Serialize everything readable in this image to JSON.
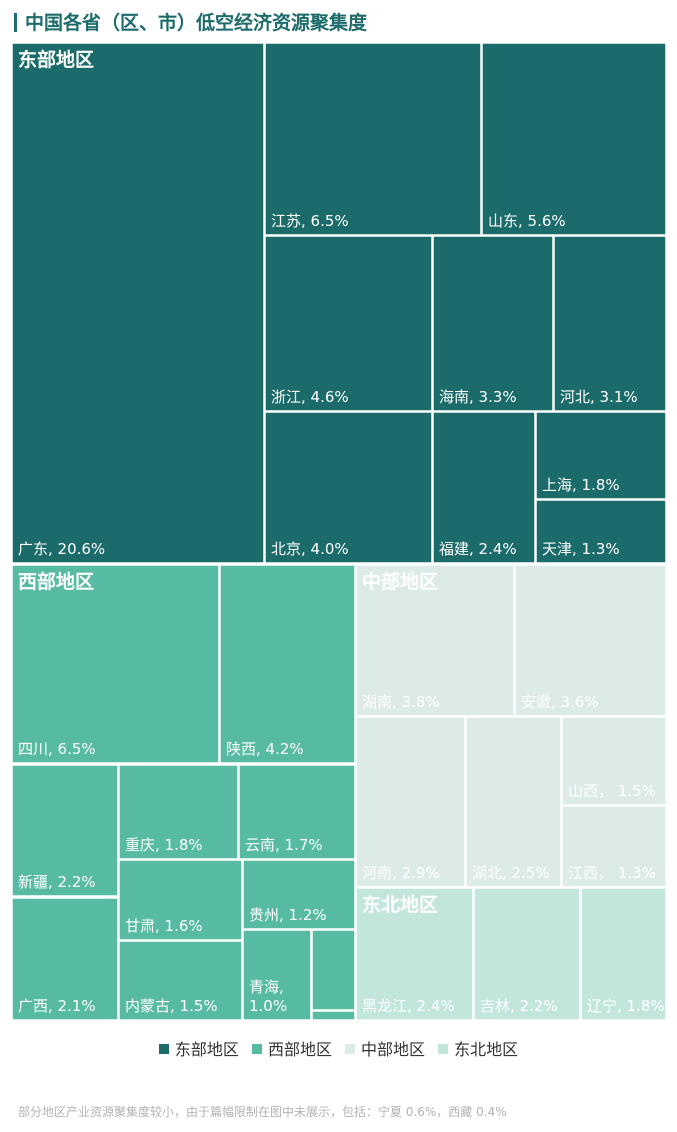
{
  "title": "中国各省（区、市）低空经济资源聚集度",
  "chart_data": {
    "type": "treemap",
    "unit": "%",
    "groups": [
      {
        "name": "东部地区",
        "color": "#1b6b6b",
        "text_color": "#ffffff",
        "items": [
          {
            "name": "广东",
            "value": 20.6,
            "label": "广东, 20.6%"
          },
          {
            "name": "江苏",
            "value": 6.5,
            "label": "江苏, 6.5%"
          },
          {
            "name": "山东",
            "value": 5.6,
            "label": "山东, 5.6%"
          },
          {
            "name": "浙江",
            "value": 4.6,
            "label": "浙江, 4.6%"
          },
          {
            "name": "海南",
            "value": 3.3,
            "label": "海南, 3.3%"
          },
          {
            "name": "河北",
            "value": 3.1,
            "label": "河北, 3.1%"
          },
          {
            "name": "上海",
            "value": 1.8,
            "label": "上海, 1.8%"
          },
          {
            "name": "北京",
            "value": 4.0,
            "label": "北京, 4.0%"
          },
          {
            "name": "福建",
            "value": 2.4,
            "label": "福建, 2.4%"
          },
          {
            "name": "天津",
            "value": 1.3,
            "label": "天津, 1.3%"
          }
        ]
      },
      {
        "name": "西部地区",
        "color": "#57bba3",
        "text_color": "#ffffff",
        "items": [
          {
            "name": "四川",
            "value": 6.5,
            "label": "四川, 6.5%"
          },
          {
            "name": "陕西",
            "value": 4.2,
            "label": "陕西, 4.2%"
          },
          {
            "name": "新疆",
            "value": 2.2,
            "label": "新疆, 2.2%"
          },
          {
            "name": "重庆",
            "value": 1.8,
            "label": "重庆, 1.8%"
          },
          {
            "name": "云南",
            "value": 1.7,
            "label": "云南, 1.7%"
          },
          {
            "name": "广西",
            "value": 2.1,
            "label": "广西, 2.1%"
          },
          {
            "name": "甘肃",
            "value": 1.6,
            "label": "甘肃, 1.6%"
          },
          {
            "name": "贵州",
            "value": 1.2,
            "label": "贵州, 1.2%"
          },
          {
            "name": "内蒙古",
            "value": 1.5,
            "label": "内蒙古, 1.5%"
          },
          {
            "name": "青海",
            "value": 1.0,
            "label": "青海, 1.0%"
          },
          {
            "name": "",
            "value": null,
            "label": ""
          },
          {
            "name": "",
            "value": null,
            "label": ""
          }
        ]
      },
      {
        "name": "中部地区",
        "color": "#dcebe8",
        "text_color": "#ffffff",
        "items": [
          {
            "name": "湖南",
            "value": 3.8,
            "label": "湖南, 3.8%"
          },
          {
            "name": "安徽",
            "value": 3.6,
            "label": "安徽, 3.6%"
          },
          {
            "name": "河南",
            "value": 2.9,
            "label": "河南, 2.9%"
          },
          {
            "name": "湖北",
            "value": 2.5,
            "label": "湖北, 2.5%"
          },
          {
            "name": "山西",
            "value": 1.5,
            "label": "山西， 1.5%"
          },
          {
            "name": "江西",
            "value": 1.3,
            "label": "江西， 1.3%"
          }
        ]
      },
      {
        "name": "东北地区",
        "color": "#c2e6dc",
        "text_color": "#ffffff",
        "items": [
          {
            "name": "黑龙江",
            "value": 2.4,
            "label": "黑龙江, 2.4%"
          },
          {
            "name": "吉林",
            "value": 2.2,
            "label": "吉林, 2.2%"
          },
          {
            "name": "辽宁",
            "value": 1.8,
            "label": "辽宁, 1.8%"
          }
        ]
      }
    ],
    "legend": {
      "placement": "bottom-center",
      "entries": [
        {
          "label": "东部地区",
          "color": "#1b6b6b"
        },
        {
          "label": "西部地区",
          "color": "#57bba3"
        },
        {
          "label": "中部地区",
          "color": "#dcebe8"
        },
        {
          "label": "东北地区",
          "color": "#c2e6dc"
        }
      ]
    }
  },
  "footnote": "部分地区产业资源聚集度较小，由于篇幅限制在图中未展示，包括：宁夏 0.6%，西藏 0.4%"
}
